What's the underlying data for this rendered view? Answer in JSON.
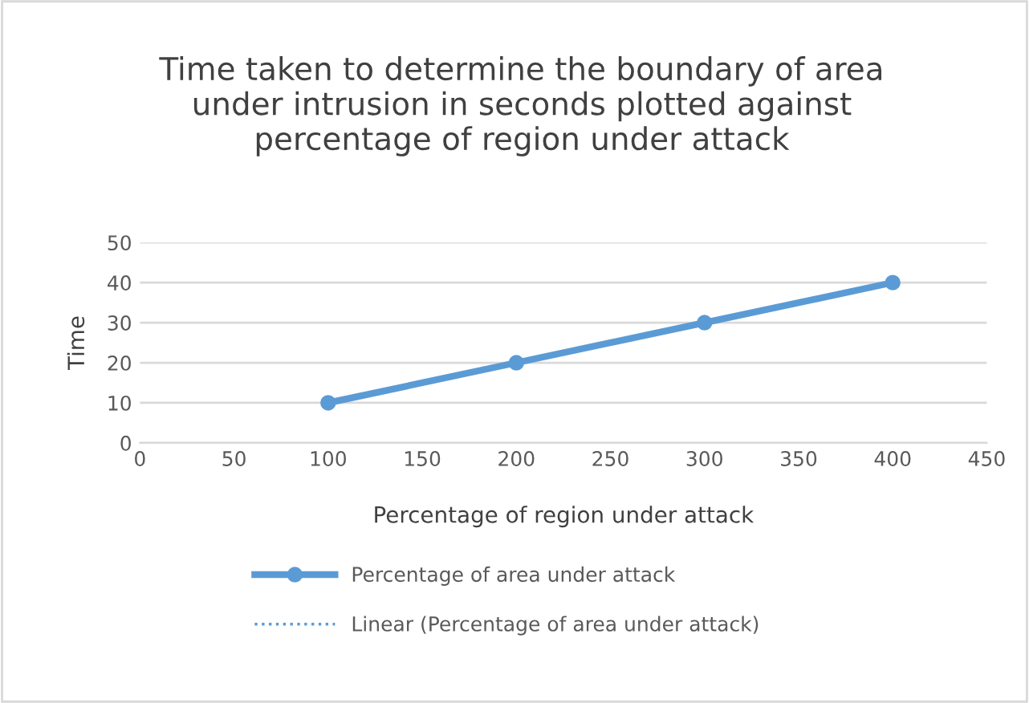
{
  "chart_data": {
    "type": "line",
    "title": "Time taken to determine the boundary of area under intrusion in seconds plotted against percentage of region under attack",
    "xlabel": "Percentage of region under attack",
    "ylabel": "Time",
    "series": [
      {
        "name": "Percentage of area under attack",
        "color": "#5b9bd5",
        "x": [
          100,
          200,
          300,
          400
        ],
        "values": [
          10,
          20,
          30,
          40
        ],
        "marker": "circle",
        "line_style": "solid"
      },
      {
        "name": "Linear (Percentage of area under attack)",
        "color": "#5b9bd5",
        "values": [
          null,
          null,
          null,
          null
        ],
        "marker": "none",
        "line_style": "dotted"
      }
    ],
    "xlim": [
      0,
      450
    ],
    "xticks": [
      0,
      50,
      100,
      150,
      200,
      250,
      300,
      350,
      400,
      450
    ],
    "ylim": [
      0,
      50
    ],
    "yticks": [
      0,
      10,
      20,
      30,
      40,
      50
    ],
    "grid": "y",
    "legend": "bottom"
  }
}
